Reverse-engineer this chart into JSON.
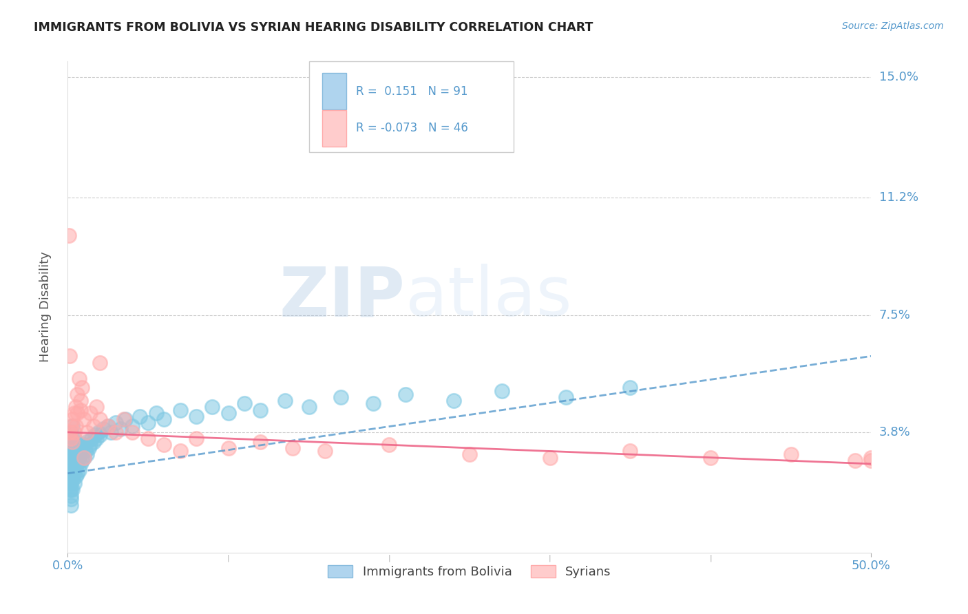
{
  "title": "IMMIGRANTS FROM BOLIVIA VS SYRIAN HEARING DISABILITY CORRELATION CHART",
  "source": "Source: ZipAtlas.com",
  "xlim": [
    0.0,
    0.5
  ],
  "ylim": [
    0.0,
    0.155
  ],
  "ylabel": "Hearing Disability",
  "legend_label1": "Immigrants from Bolivia",
  "legend_label2": "Syrians",
  "color_blue": "#7ec8e3",
  "color_pink": "#ffaaaa",
  "color_blue_line": "#5599cc",
  "color_pink_line": "#ee6688",
  "color_ytick": "#5599cc",
  "color_xtick": "#5599cc",
  "color_title": "#222222",
  "color_source": "#5599cc",
  "watermark_zip": "ZIP",
  "watermark_atlas": "atlas",
  "bolivia_trend_x": [
    0.0,
    0.5
  ],
  "bolivia_trend_y": [
    0.025,
    0.062
  ],
  "syria_trend_x": [
    0.0,
    0.5
  ],
  "syria_trend_y": [
    0.038,
    0.028
  ],
  "ytick_vals": [
    0.038,
    0.075,
    0.112,
    0.15
  ],
  "ytick_labels": [
    "3.8%",
    "7.5%",
    "11.2%",
    "15.0%"
  ],
  "xtick_vals": [
    0.0,
    0.5
  ],
  "xtick_labels": [
    "0.0%",
    "50.0%"
  ],
  "grid_color": "#cccccc",
  "background_color": "#ffffff",
  "bolivia_x": [
    0.0005,
    0.001,
    0.001,
    0.001,
    0.001,
    0.001,
    0.001,
    0.001,
    0.001,
    0.001,
    0.001,
    0.001,
    0.0015,
    0.0015,
    0.002,
    0.002,
    0.002,
    0.002,
    0.002,
    0.002,
    0.002,
    0.002,
    0.002,
    0.002,
    0.002,
    0.002,
    0.003,
    0.003,
    0.003,
    0.003,
    0.003,
    0.003,
    0.003,
    0.004,
    0.004,
    0.004,
    0.004,
    0.004,
    0.005,
    0.005,
    0.005,
    0.005,
    0.006,
    0.006,
    0.006,
    0.007,
    0.007,
    0.007,
    0.008,
    0.008,
    0.009,
    0.009,
    0.01,
    0.01,
    0.011,
    0.012,
    0.012,
    0.013,
    0.014,
    0.015,
    0.016,
    0.017,
    0.018,
    0.019,
    0.02,
    0.022,
    0.025,
    0.027,
    0.03,
    0.033,
    0.036,
    0.04,
    0.045,
    0.05,
    0.055,
    0.06,
    0.07,
    0.08,
    0.09,
    0.1,
    0.11,
    0.12,
    0.135,
    0.15,
    0.17,
    0.19,
    0.21,
    0.24,
    0.27,
    0.31,
    0.35
  ],
  "bolivia_y": [
    0.03,
    0.02,
    0.022,
    0.024,
    0.026,
    0.028,
    0.03,
    0.032,
    0.034,
    0.025,
    0.027,
    0.029,
    0.022,
    0.031,
    0.018,
    0.02,
    0.022,
    0.024,
    0.026,
    0.028,
    0.03,
    0.032,
    0.035,
    0.017,
    0.038,
    0.015,
    0.02,
    0.023,
    0.025,
    0.028,
    0.03,
    0.033,
    0.04,
    0.022,
    0.025,
    0.028,
    0.032,
    0.036,
    0.024,
    0.027,
    0.03,
    0.035,
    0.025,
    0.028,
    0.032,
    0.026,
    0.03,
    0.034,
    0.028,
    0.032,
    0.029,
    0.033,
    0.03,
    0.034,
    0.032,
    0.031,
    0.035,
    0.033,
    0.034,
    0.036,
    0.035,
    0.037,
    0.036,
    0.038,
    0.037,
    0.039,
    0.04,
    0.038,
    0.041,
    0.039,
    0.042,
    0.04,
    0.043,
    0.041,
    0.044,
    0.042,
    0.045,
    0.043,
    0.046,
    0.044,
    0.047,
    0.045,
    0.048,
    0.046,
    0.049,
    0.047,
    0.05,
    0.048,
    0.051,
    0.049,
    0.052
  ],
  "syria_x": [
    0.0005,
    0.001,
    0.001,
    0.002,
    0.002,
    0.003,
    0.003,
    0.004,
    0.004,
    0.005,
    0.005,
    0.006,
    0.006,
    0.007,
    0.008,
    0.009,
    0.01,
    0.012,
    0.014,
    0.016,
    0.018,
    0.02,
    0.025,
    0.03,
    0.035,
    0.04,
    0.05,
    0.06,
    0.07,
    0.08,
    0.1,
    0.12,
    0.14,
    0.16,
    0.2,
    0.25,
    0.3,
    0.35,
    0.4,
    0.45,
    0.49,
    0.5,
    0.5,
    0.02,
    0.008,
    0.01
  ],
  "syria_y": [
    0.1,
    0.062,
    0.038,
    0.04,
    0.036,
    0.042,
    0.035,
    0.044,
    0.038,
    0.046,
    0.04,
    0.05,
    0.044,
    0.055,
    0.048,
    0.052,
    0.042,
    0.038,
    0.044,
    0.04,
    0.046,
    0.042,
    0.04,
    0.038,
    0.042,
    0.038,
    0.036,
    0.034,
    0.032,
    0.036,
    0.033,
    0.035,
    0.033,
    0.032,
    0.034,
    0.031,
    0.03,
    0.032,
    0.03,
    0.031,
    0.029,
    0.03,
    0.029,
    0.06,
    0.045,
    0.03
  ]
}
